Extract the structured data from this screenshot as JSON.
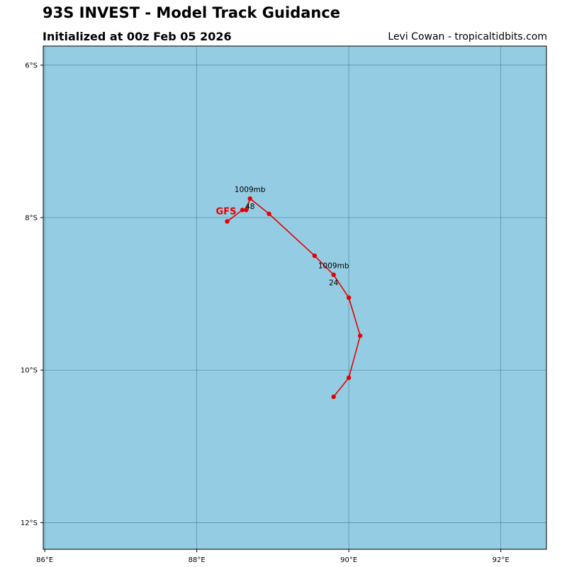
{
  "header": {
    "title": "93S INVEST - Model Track Guidance",
    "subtitle": "Initialized at 00z Feb 05 2026",
    "credit": "Levi Cowan - tropicaltidbits.com"
  },
  "chart_data": {
    "type": "map-track",
    "lon_range": [
      85.98,
      92.6
    ],
    "lat_range": [
      -12.35,
      -5.75
    ],
    "grid": true,
    "ocean_color": "#94CDE3",
    "track_color": "#E60000",
    "lon_ticks": [
      {
        "value": 86,
        "label": "86°E"
      },
      {
        "value": 88,
        "label": "88°E"
      },
      {
        "value": 90,
        "label": "90°E"
      },
      {
        "value": 92,
        "label": "92°E"
      }
    ],
    "lat_ticks": [
      {
        "value": -6,
        "label": "6°S"
      },
      {
        "value": -8,
        "label": "8°S"
      },
      {
        "value": -10,
        "label": "10°S"
      },
      {
        "value": -12,
        "label": "12°S"
      }
    ],
    "series": [
      {
        "name": "GFS",
        "points": [
          {
            "lon": 89.8,
            "lat": -10.35
          },
          {
            "lon": 90.0,
            "lat": -10.1
          },
          {
            "lon": 90.15,
            "lat": -9.55
          },
          {
            "lon": 90.0,
            "lat": -9.05
          },
          {
            "lon": 89.8,
            "lat": -8.75
          },
          {
            "lon": 89.55,
            "lat": -8.5
          },
          {
            "lon": 88.95,
            "lat": -7.95
          },
          {
            "lon": 88.7,
            "lat": -7.75
          },
          {
            "lon": 88.65,
            "lat": -7.9
          },
          {
            "lon": 88.6,
            "lat": -7.9
          },
          {
            "lon": 88.4,
            "lat": -8.05
          }
        ],
        "annotations": [
          {
            "lon": 89.8,
            "lat": -8.75,
            "pressure": "1009mb",
            "hour": "24"
          },
          {
            "lon": 88.7,
            "lat": -7.75,
            "pressure": "1009mb",
            "hour": "48"
          }
        ]
      }
    ]
  }
}
